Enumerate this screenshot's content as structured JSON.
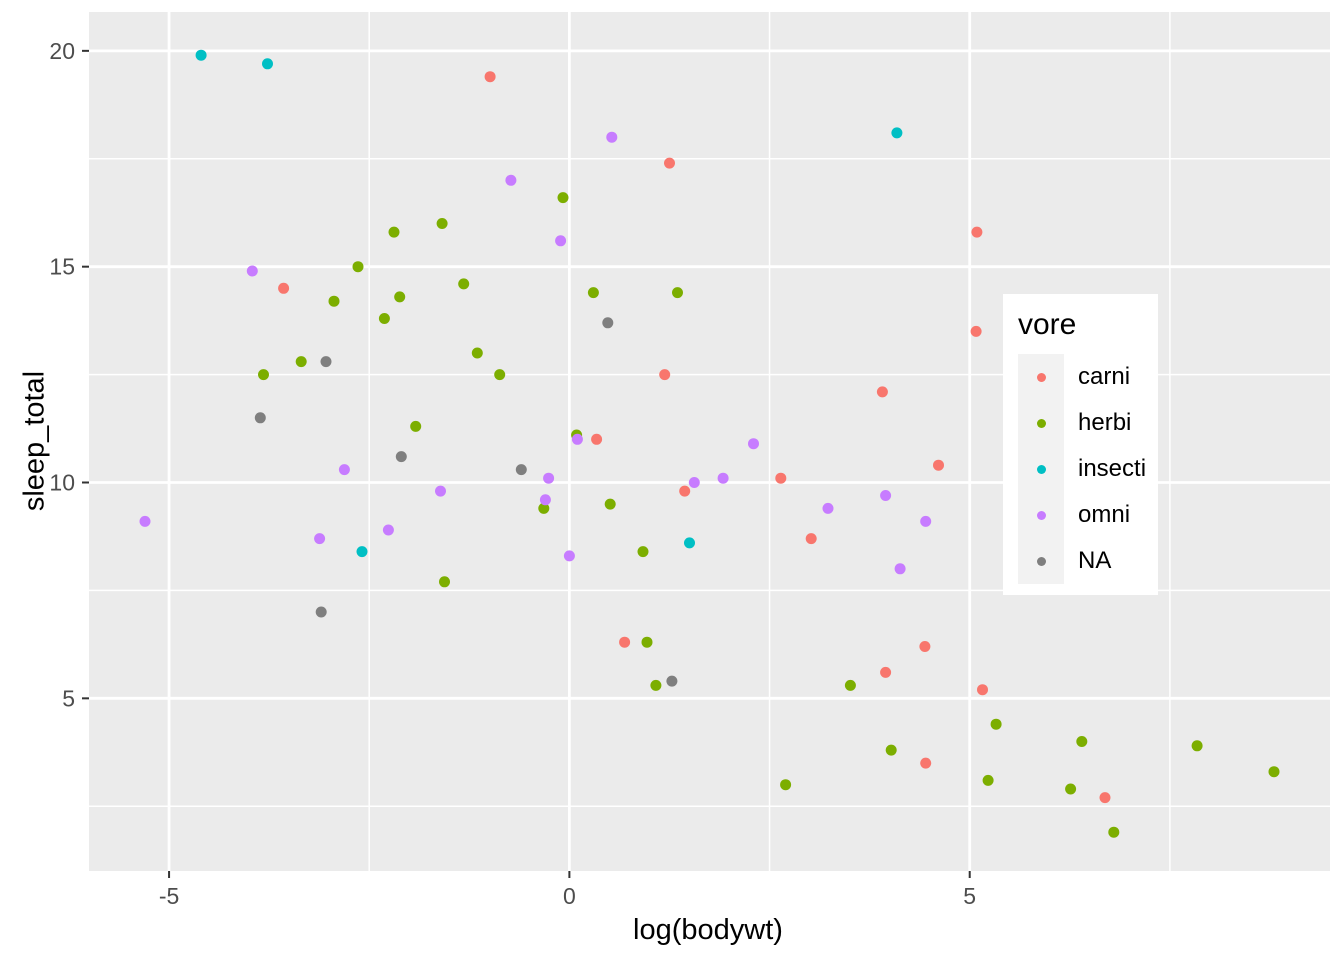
{
  "chart_data": {
    "type": "scatter",
    "title": "",
    "xlabel": "log(bodywt)",
    "ylabel": "sleep_total",
    "xlim": [
      -6.0,
      9.5
    ],
    "ylim": [
      1.0,
      20.9
    ],
    "grid": true,
    "x_ticks": [
      -5,
      0,
      5
    ],
    "x_tick_labels": [
      "-5",
      "0",
      "5"
    ],
    "y_ticks": [
      5,
      10,
      15,
      20
    ],
    "y_tick_labels": [
      "5",
      "10",
      "15",
      "20"
    ],
    "x_minor_ticks": [
      -2.5,
      2.5,
      7.5
    ],
    "y_minor_ticks": [
      2.5,
      7.5,
      12.5,
      17.5
    ],
    "legend_title": "vore",
    "legend_position": "inside-right",
    "series": [
      {
        "name": "carni",
        "color": "#F8766D",
        "points": [
          [
            -0.99,
            19.4
          ],
          [
            1.25,
            17.4
          ],
          [
            5.09,
            15.8
          ],
          [
            -3.57,
            14.5
          ],
          [
            5.08,
            13.5
          ],
          [
            1.19,
            12.5
          ],
          [
            3.91,
            12.1
          ],
          [
            0.34,
            11.0
          ],
          [
            4.61,
            10.4
          ],
          [
            2.64,
            10.1
          ],
          [
            1.44,
            9.8
          ],
          [
            3.02,
            8.7
          ],
          [
            0.69,
            6.3
          ],
          [
            4.44,
            6.2
          ],
          [
            3.95,
            5.6
          ],
          [
            5.16,
            5.2
          ],
          [
            4.45,
            3.5
          ],
          [
            6.69,
            2.7
          ]
        ]
      },
      {
        "name": "herbi",
        "color": "#7CAE00",
        "points": [
          [
            -0.08,
            16.6
          ],
          [
            -1.59,
            16.0
          ],
          [
            -2.19,
            15.8
          ],
          [
            -2.64,
            15.0
          ],
          [
            -1.32,
            14.6
          ],
          [
            0.3,
            14.4
          ],
          [
            1.35,
            14.4
          ],
          [
            -2.12,
            14.3
          ],
          [
            -2.94,
            14.2
          ],
          [
            -2.31,
            13.8
          ],
          [
            -1.15,
            13.0
          ],
          [
            -3.35,
            12.8
          ],
          [
            -0.87,
            12.5
          ],
          [
            -3.82,
            12.5
          ],
          [
            -1.92,
            11.3
          ],
          [
            0.09,
            11.1
          ],
          [
            0.51,
            9.5
          ],
          [
            -0.32,
            9.4
          ],
          [
            0.92,
            8.4
          ],
          [
            -1.56,
            7.7
          ],
          [
            0.97,
            6.3
          ],
          [
            1.08,
            5.3
          ],
          [
            3.51,
            5.3
          ],
          [
            5.33,
            4.4
          ],
          [
            6.4,
            4.0
          ],
          [
            4.02,
            3.8
          ],
          [
            7.84,
            3.9
          ],
          [
            8.8,
            3.3
          ],
          [
            5.23,
            3.1
          ],
          [
            2.7,
            3.0
          ],
          [
            6.26,
            2.9
          ],
          [
            6.8,
            1.9
          ]
        ]
      },
      {
        "name": "insecti",
        "color": "#00BFC4",
        "points": [
          [
            -4.6,
            19.9
          ],
          [
            -3.77,
            19.7
          ],
          [
            4.09,
            18.1
          ],
          [
            1.5,
            8.6
          ],
          [
            -2.59,
            8.4
          ]
        ]
      },
      {
        "name": "omni",
        "color": "#C77CFF",
        "points": [
          [
            0.53,
            18.0
          ],
          [
            -0.73,
            17.0
          ],
          [
            -0.11,
            15.6
          ],
          [
            -3.96,
            14.9
          ],
          [
            0.1,
            11.0
          ],
          [
            2.3,
            10.9
          ],
          [
            -2.81,
            10.3
          ],
          [
            -0.26,
            10.1
          ],
          [
            1.92,
            10.1
          ],
          [
            1.56,
            10.0
          ],
          [
            3.95,
            9.7
          ],
          [
            -1.61,
            9.8
          ],
          [
            -0.3,
            9.6
          ],
          [
            3.23,
            9.4
          ],
          [
            4.45,
            9.1
          ],
          [
            -5.3,
            9.1
          ],
          [
            -2.26,
            8.9
          ],
          [
            -3.12,
            8.7
          ],
          [
            0.0,
            8.3
          ],
          [
            4.13,
            8.0
          ]
        ]
      },
      {
        "name": "NA",
        "color": "#7F7F7F",
        "points": [
          [
            0.48,
            13.7
          ],
          [
            -3.04,
            12.8
          ],
          [
            -3.86,
            11.5
          ],
          [
            -2.1,
            10.6
          ],
          [
            -0.6,
            10.3
          ],
          [
            -3.1,
            7.0
          ],
          [
            1.28,
            5.4
          ]
        ]
      }
    ]
  },
  "colors": {
    "panel_background": "#EBEBEB",
    "gridline": "#FFFFFF",
    "axis_text": "#4D4D4D",
    "tick_mark": "#333333",
    "legend_background": "#FFFFFF",
    "legend_key": "#F2F2F2",
    "axis_title": "#000000"
  }
}
